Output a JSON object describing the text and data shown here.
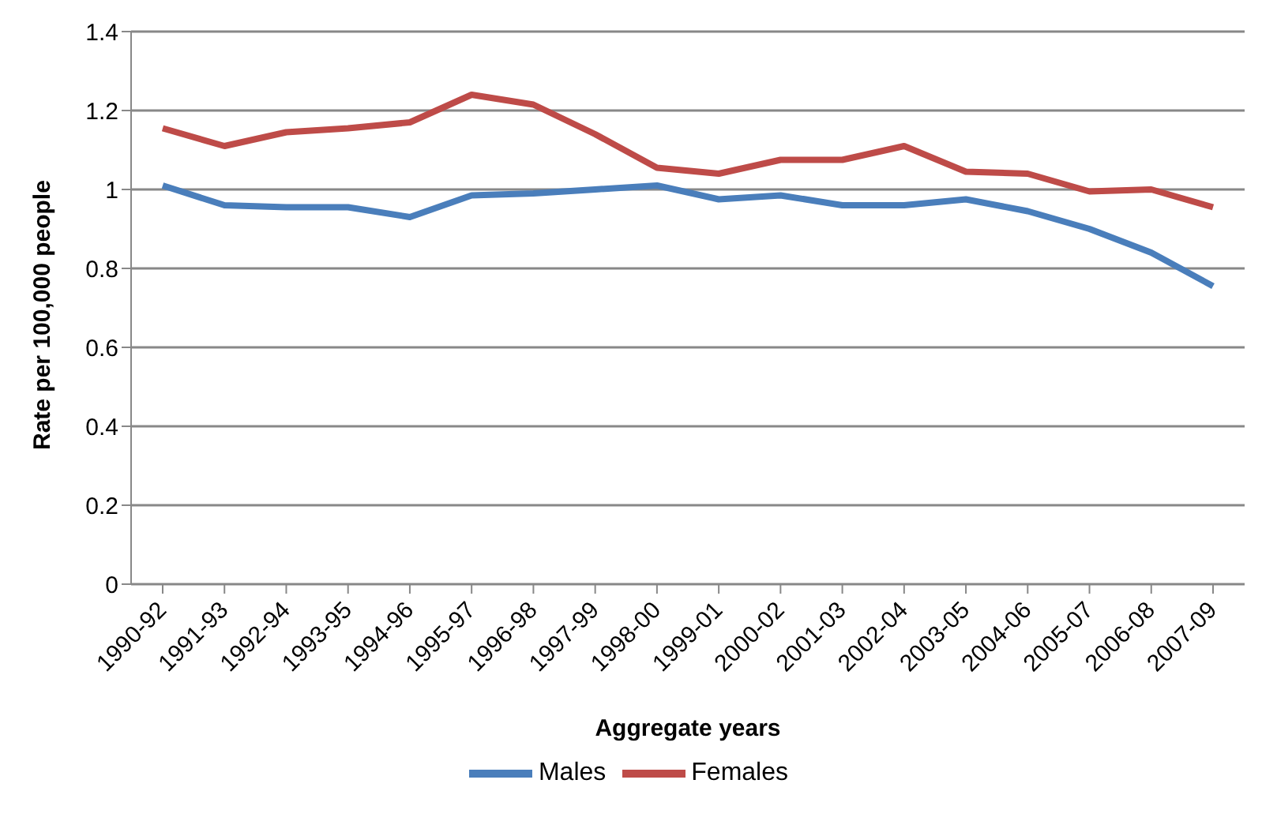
{
  "chart_data": {
    "type": "line",
    "xlabel": "Aggregate years",
    "ylabel": "Rate per 100,000 people",
    "categories": [
      "1990-92",
      "1991-93",
      "1992-94",
      "1993-95",
      "1994-96",
      "1995-97",
      "1996-98",
      "1997-99",
      "1998-00",
      "1999-01",
      "2000-02",
      "2001-03",
      "2002-04",
      "2003-05",
      "2004-06",
      "2005-07",
      "2006-08",
      "2007-09"
    ],
    "series": [
      {
        "name": "Males",
        "color": "#4a7ebb",
        "values": [
          1.01,
          0.96,
          0.955,
          0.955,
          0.93,
          0.985,
          0.99,
          1.0,
          1.01,
          0.975,
          0.985,
          0.96,
          0.96,
          0.975,
          0.945,
          0.9,
          0.84,
          0.755
        ]
      },
      {
        "name": "Females",
        "color": "#be4b48",
        "values": [
          1.155,
          1.11,
          1.145,
          1.155,
          1.17,
          1.24,
          1.215,
          1.14,
          1.055,
          1.04,
          1.075,
          1.075,
          1.11,
          1.045,
          1.04,
          0.995,
          1.0,
          0.955
        ]
      }
    ],
    "ylim": [
      0,
      1.4
    ],
    "yticks": [
      0,
      0.2,
      0.4,
      0.6,
      0.8,
      1,
      1.2,
      1.4
    ],
    "grid": "y",
    "legend": "bottom",
    "marker": "none",
    "line_style": "solid"
  }
}
